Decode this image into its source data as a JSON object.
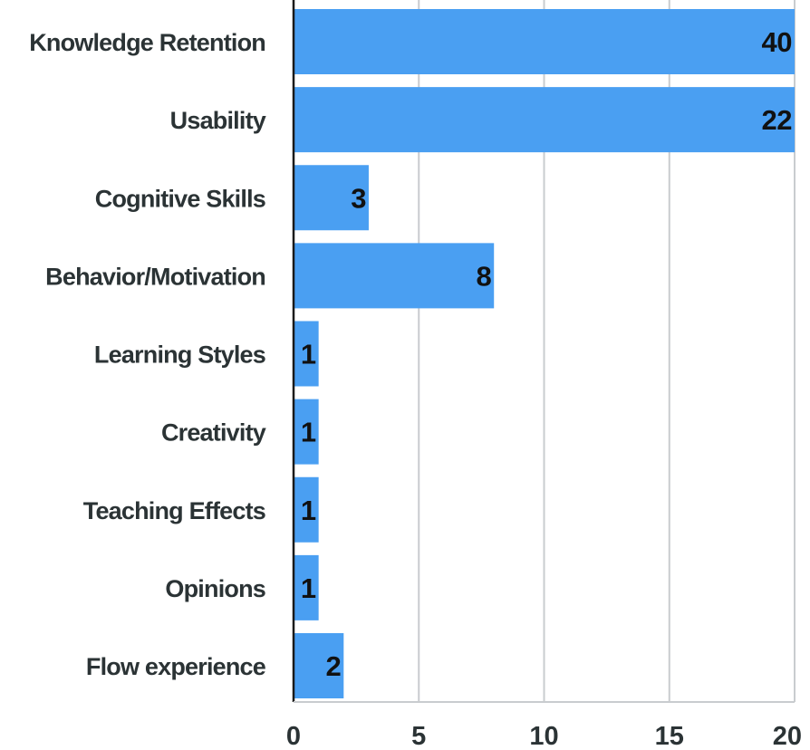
{
  "chart_data": {
    "type": "bar",
    "orientation": "horizontal",
    "categories": [
      "Knowledge Retention",
      "Usability",
      "Cognitive Skills",
      "Behavior/Motivation",
      "Learning Styles",
      "Creativity",
      "Teaching Effects",
      "Opinions",
      "Flow experience"
    ],
    "values": [
      40,
      22,
      3,
      8,
      1,
      1,
      1,
      1,
      2
    ],
    "data_labels": [
      "40",
      "22",
      "3",
      "8",
      "1",
      "1",
      "1",
      "1",
      "2"
    ],
    "xlim": [
      0,
      20
    ],
    "x_ticks": [
      0,
      5,
      10,
      15,
      20
    ],
    "x_tick_labels": [
      "0",
      "5",
      "10",
      "15",
      "20"
    ],
    "clip_to_axis_max": true,
    "grid": "vertical",
    "legend": "none",
    "title": "",
    "xlabel": "",
    "ylabel": "",
    "colors": {
      "bar": "#4a9ff2",
      "grid": "#c9cccf",
      "axis": "#1a1a1a",
      "text": "#2b3335",
      "data_label": "#111111"
    }
  }
}
